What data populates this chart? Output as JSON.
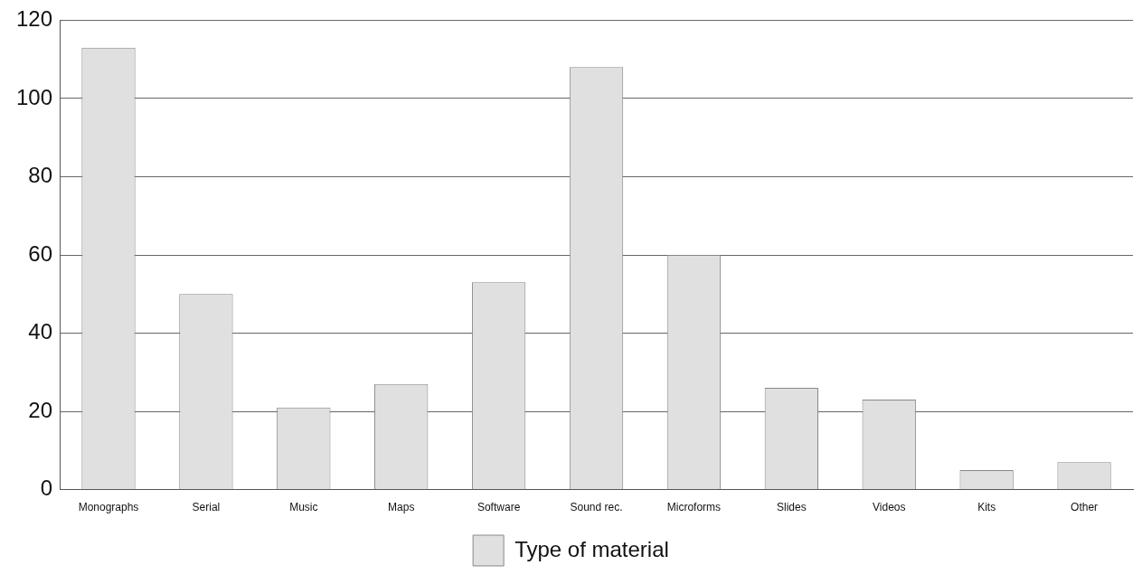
{
  "chart_data": {
    "type": "bar",
    "categories": [
      "Monographs",
      "Serial",
      "Music",
      "Maps",
      "Software",
      "Sound rec.",
      "Microforms",
      "Slides",
      "Videos",
      "Kits",
      "Other"
    ],
    "series": [
      {
        "name": "Type of material",
        "color": "#e0e0e0",
        "values": [
          113,
          50,
          21,
          27,
          53,
          108,
          60,
          26,
          23,
          5,
          7
        ]
      }
    ],
    "ylim": [
      0,
      120
    ],
    "yticks": [
      0,
      20,
      40,
      60,
      80,
      100,
      120
    ],
    "grid": "y",
    "legend": "bottom"
  }
}
